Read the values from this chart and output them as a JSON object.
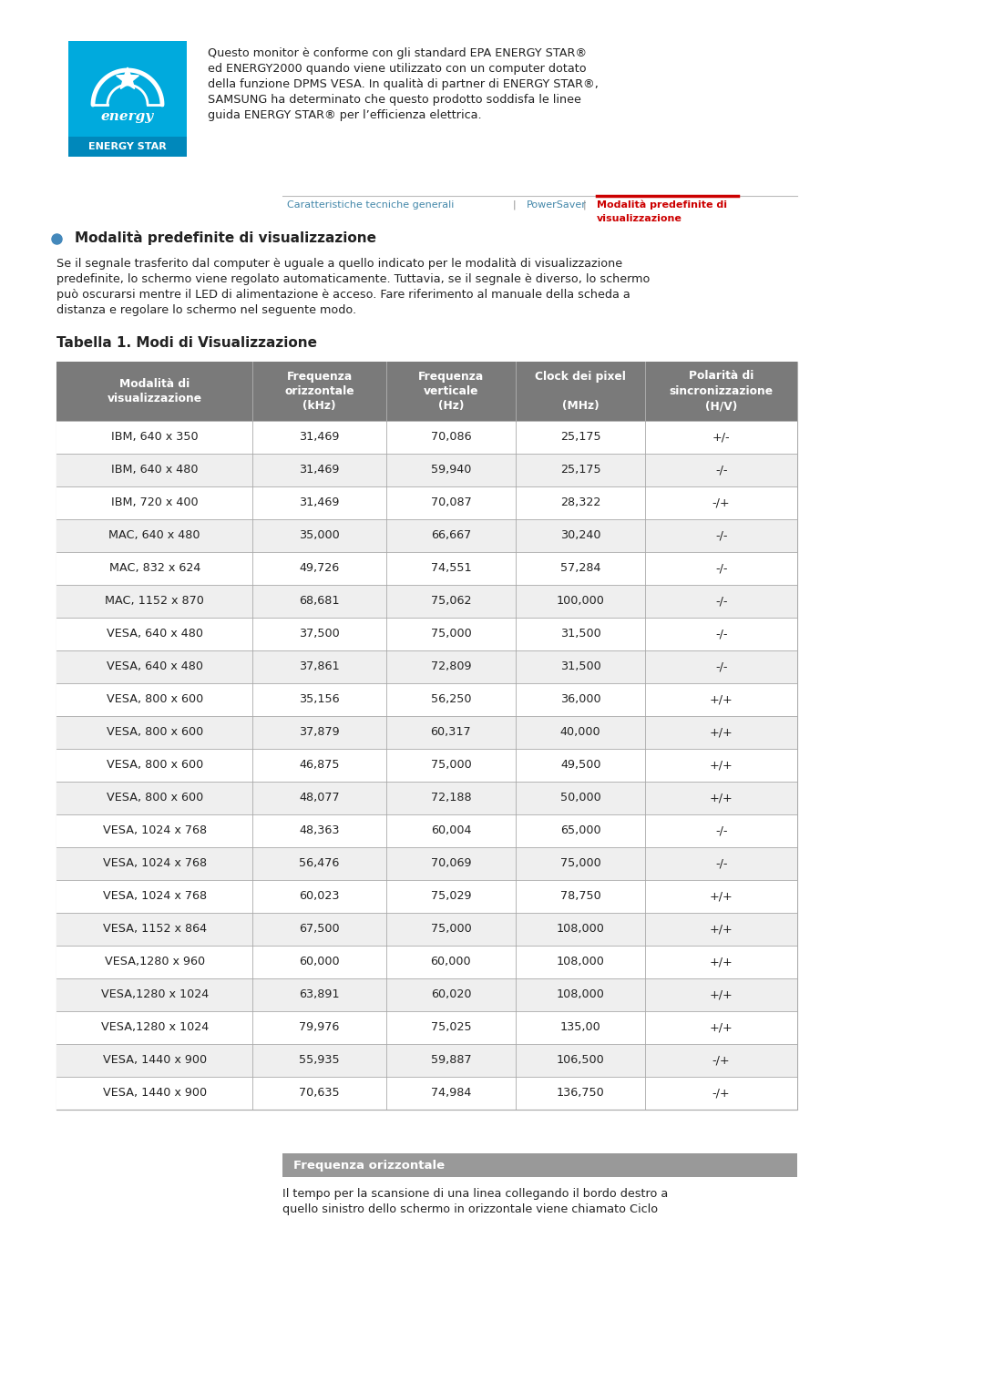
{
  "bg_color": "#ffffff",
  "page_width": 10.8,
  "page_height": 15.28,
  "energy_star_text_lines": [
    "Questo monitor è conforme con gli standard EPA ENERGY STAR®",
    "ed ENERGY2000 quando viene utilizzato con un computer dotato",
    "della funzione DPMS VESA. In qualità di partner di ENERGY STAR®,",
    "SAMSUNG ha determinato che questo prodotto soddisfa le linee",
    "guida ENERGY STAR® per l’efficienza elettrica."
  ],
  "nav_item1": "Caratteristiche tecniche generali",
  "nav_sep": "|",
  "nav_item2": "PowerSaver",
  "nav_item3_line1": "Modalità predefinite di",
  "nav_item3_line2": "visualizzazione",
  "section_title": "Modalità predefinite di visualizzazione",
  "section_body_lines": [
    "Se il segnale trasferito dal computer è uguale a quello indicato per le modalità di visualizzazione",
    "predefinite, lo schermo viene regolato automaticamente. Tuttavia, se il segnale è diverso, lo schermo",
    "può oscurarsi mentre il LED di alimentazione è acceso. Fare riferimento al manuale della scheda a",
    "distanza e regolare lo schermo nel seguente modo."
  ],
  "table_title": "Tabella 1. Modi di Visualizzazione",
  "col_headers": [
    "Modalità di\nvisualizzazione",
    "Frequenza\norizzontale\n(kHz)",
    "Frequenza\nverticale\n(Hz)",
    "Clock dei pixel\n\n(MHz)",
    "Polarità di\nsincronizzazione\n(H/V)"
  ],
  "header_bg": "#7a7a7a",
  "header_fg": "#ffffff",
  "row_bg_odd": "#efefef",
  "row_bg_even": "#ffffff",
  "border_color": "#aaaaaa",
  "table_rows": [
    [
      "IBM, 640 x 350",
      "31,469",
      "70,086",
      "25,175",
      "+/-"
    ],
    [
      "IBM, 640 x 480",
      "31,469",
      "59,940",
      "25,175",
      "-/-"
    ],
    [
      "IBM, 720 x 400",
      "31,469",
      "70,087",
      "28,322",
      "-/+"
    ],
    [
      "MAC, 640 x 480",
      "35,000",
      "66,667",
      "30,240",
      "-/-"
    ],
    [
      "MAC, 832 x 624",
      "49,726",
      "74,551",
      "57,284",
      "-/-"
    ],
    [
      "MAC, 1152 x 870",
      "68,681",
      "75,062",
      "100,000",
      "-/-"
    ],
    [
      "VESA, 640 x 480",
      "37,500",
      "75,000",
      "31,500",
      "-/-"
    ],
    [
      "VESA, 640 x 480",
      "37,861",
      "72,809",
      "31,500",
      "-/-"
    ],
    [
      "VESA, 800 x 600",
      "35,156",
      "56,250",
      "36,000",
      "+/+"
    ],
    [
      "VESA, 800 x 600",
      "37,879",
      "60,317",
      "40,000",
      "+/+"
    ],
    [
      "VESA, 800 x 600",
      "46,875",
      "75,000",
      "49,500",
      "+/+"
    ],
    [
      "VESA, 800 x 600",
      "48,077",
      "72,188",
      "50,000",
      "+/+"
    ],
    [
      "VESA, 1024 x 768",
      "48,363",
      "60,004",
      "65,000",
      "-/-"
    ],
    [
      "VESA, 1024 x 768",
      "56,476",
      "70,069",
      "75,000",
      "-/-"
    ],
    [
      "VESA, 1024 x 768",
      "60,023",
      "75,029",
      "78,750",
      "+/+"
    ],
    [
      "VESA, 1152 x 864",
      "67,500",
      "75,000",
      "108,000",
      "+/+"
    ],
    [
      "VESA,1280 x 960",
      "60,000",
      "60,000",
      "108,000",
      "+/+"
    ],
    [
      "VESA,1280 x 1024",
      "63,891",
      "60,020",
      "108,000",
      "+/+"
    ],
    [
      "VESA,1280 x 1024",
      "79,976",
      "75,025",
      "135,00",
      "+/+"
    ],
    [
      "VESA, 1440 x 900",
      "55,935",
      "59,887",
      "106,500",
      "-/+"
    ],
    [
      "VESA, 1440 x 900",
      "70,635",
      "74,984",
      "136,750",
      "-/+"
    ]
  ],
  "footer_box_title": "Frequenza orizzontale",
  "footer_box_bg": "#999999",
  "footer_box_fg": "#ffffff",
  "footer_text_lines": [
    "Il tempo per la scansione di una linea collegando il bordo destro a",
    "quello sinistro dello schermo in orizzontale viene chiamato Ciclo"
  ],
  "logo_bg": "#00aadd",
  "logo_label_bg": "#0088bb",
  "energy_star_label": "ENERGY STAR"
}
